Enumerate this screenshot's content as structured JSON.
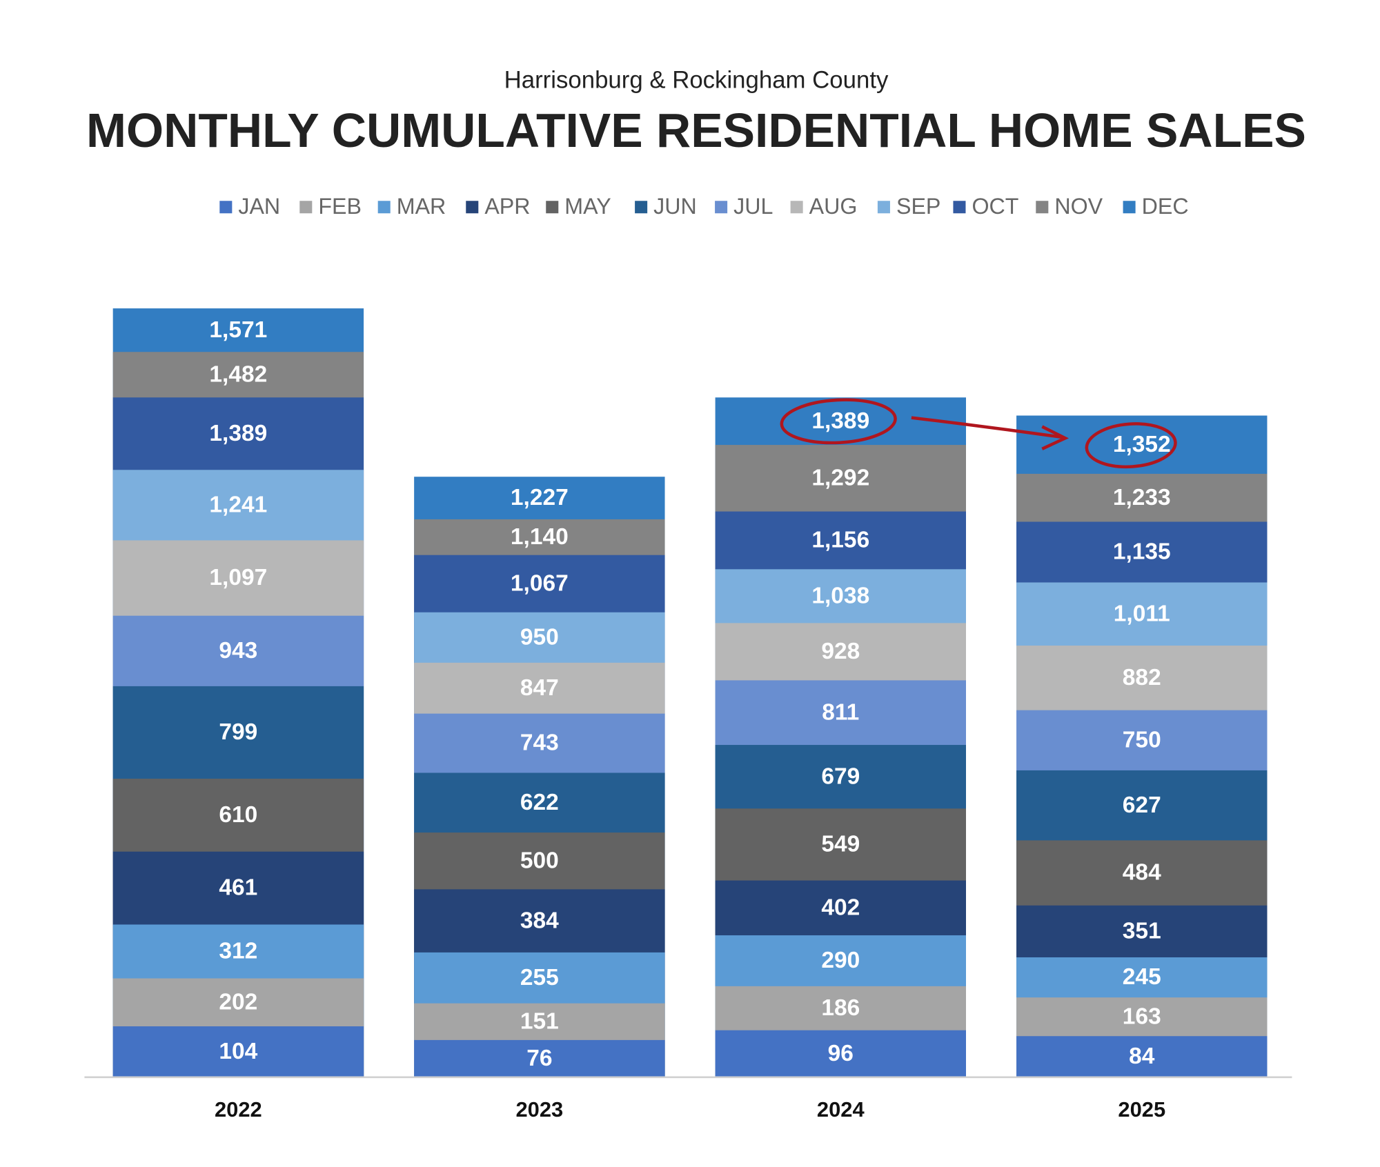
{
  "chart_data": {
    "type": "bar",
    "subtitle": "Harrisonburg & Rockingham County",
    "title": "MONTHLY CUMULATIVE RESIDENTIAL HOME SALES",
    "categories": [
      "2022",
      "2023",
      "2024",
      "2025"
    ],
    "ylim": [
      0,
      1600
    ],
    "series": [
      {
        "name": "JAN",
        "color": "#4472c4",
        "values": [
          104,
          76,
          96,
          84
        ]
      },
      {
        "name": "FEB",
        "color": "#a5a5a5",
        "values": [
          202,
          151,
          186,
          163
        ]
      },
      {
        "name": "MAR",
        "color": "#5b9bd5",
        "values": [
          312,
          255,
          290,
          245
        ]
      },
      {
        "name": "APR",
        "color": "#264478",
        "values": [
          461,
          384,
          402,
          351
        ]
      },
      {
        "name": "MAY",
        "color": "#636363",
        "values": [
          610,
          500,
          549,
          484
        ]
      },
      {
        "name": "JUN",
        "color": "#255e91",
        "values": [
          799,
          622,
          679,
          627
        ]
      },
      {
        "name": "JUL",
        "color": "#698ed0",
        "values": [
          943,
          743,
          811,
          750
        ]
      },
      {
        "name": "AUG",
        "color": "#b7b7b7",
        "values": [
          1097,
          847,
          928,
          882
        ],
        "value_labels": [
          "1,097",
          "847",
          "928",
          "882"
        ]
      },
      {
        "name": "SEP",
        "color": "#7cafdd",
        "values": [
          1241,
          950,
          1038,
          1011
        ],
        "value_labels": [
          "1,241",
          "950",
          "1,038",
          "1,011"
        ]
      },
      {
        "name": "OCT",
        "color": "#335aa1",
        "values": [
          1389,
          1067,
          1156,
          1135
        ],
        "value_labels": [
          "1,389",
          "1,067",
          "1,156",
          "1,135"
        ]
      },
      {
        "name": "NOV",
        "color": "#848484",
        "values": [
          1482,
          1140,
          1292,
          1233
        ],
        "value_labels": [
          "1,482",
          "1,140",
          "1,292",
          "1,233"
        ]
      },
      {
        "name": "DEC",
        "color": "#327dc2",
        "values": [
          1571,
          1227,
          1389,
          1352
        ],
        "value_labels": [
          "1,571",
          "1,227",
          "1,389",
          "1,352"
        ]
      }
    ]
  }
}
